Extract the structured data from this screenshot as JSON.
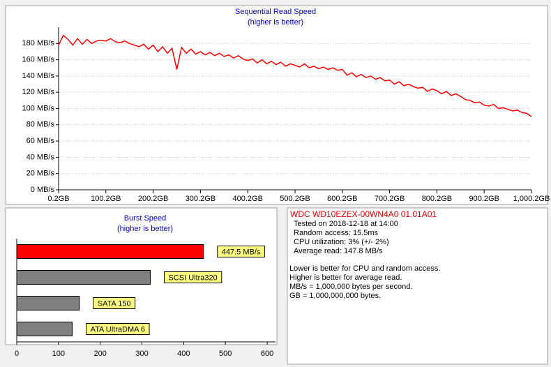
{
  "chart_data": [
    {
      "type": "line",
      "title": "Sequential Read Speed",
      "subtitle": "(higher is better)",
      "color": "#ff0000",
      "grid": true,
      "x": [
        0.2,
        10.2,
        20.2,
        30.2,
        40.2,
        50.2,
        60.2,
        70.2,
        80.2,
        90.2,
        100.2,
        110.2,
        120.2,
        130.2,
        140.2,
        150.2,
        160.2,
        170.2,
        180.2,
        190.2,
        200.2,
        210.2,
        220.2,
        230.2,
        240.2,
        250.2,
        260.2,
        270.2,
        280.2,
        290.2,
        300.2,
        310.2,
        320.2,
        330.2,
        340.2,
        350.2,
        360.2,
        370.2,
        380.2,
        390.2,
        400.2,
        410.2,
        420.2,
        430.2,
        440.2,
        450.2,
        460.2,
        470.2,
        480.2,
        490.2,
        500.2,
        510.2,
        520.2,
        530.2,
        540.2,
        550.2,
        560.2,
        570.2,
        580.2,
        590.2,
        600.2,
        610.2,
        620.2,
        630.2,
        640.2,
        650.2,
        660.2,
        670.2,
        680.2,
        690.2,
        700.2,
        710.2,
        720.2,
        730.2,
        740.2,
        750.2,
        760.2,
        770.2,
        780.2,
        790.2,
        800.2,
        810.2,
        820.2,
        830.2,
        840.2,
        850.2,
        860.2,
        870.2,
        880.2,
        890.2,
        900.2,
        910.2,
        920.2,
        930.2,
        940.2,
        950.2,
        960.2,
        970.2,
        980.2,
        990.2,
        1000.2
      ],
      "values": [
        178,
        190,
        185,
        178,
        186,
        179,
        185,
        180,
        183,
        184,
        183,
        186,
        182,
        181,
        183,
        180,
        178,
        176,
        179,
        173,
        178,
        170,
        176,
        168,
        174,
        148,
        175,
        168,
        173,
        167,
        170,
        166,
        169,
        165,
        168,
        164,
        166,
        162,
        165,
        161,
        159,
        161,
        156,
        160,
        155,
        158,
        154,
        157,
        152,
        155,
        153,
        151,
        155,
        150,
        152,
        149,
        151,
        148,
        150,
        147,
        148,
        141,
        144,
        139,
        142,
        138,
        140,
        136,
        138,
        134,
        135,
        130,
        133,
        128,
        130,
        127,
        125,
        126,
        121,
        124,
        122,
        118,
        121,
        116,
        118,
        115,
        111,
        110,
        107,
        108,
        104,
        103,
        105,
        100,
        101,
        99,
        97,
        98,
        95,
        94,
        90
      ],
      "xlim": [
        0.2,
        1000.2
      ],
      "xticks": [
        {
          "value": 0.2,
          "label": "0.2GB"
        },
        {
          "value": 100.2,
          "label": "100.2GB"
        },
        {
          "value": 200.2,
          "label": "200.2GB"
        },
        {
          "value": 300.2,
          "label": "300.2GB"
        },
        {
          "value": 400.2,
          "label": "400.2GB"
        },
        {
          "value": 500.2,
          "label": "500.2GB"
        },
        {
          "value": 600.2,
          "label": "600.2GB"
        },
        {
          "value": 700.2,
          "label": "700.2GB"
        },
        {
          "value": 800.2,
          "label": "800.2GB"
        },
        {
          "value": 900.2,
          "label": "900.2GB"
        },
        {
          "value": 1000.2,
          "label": "1,000.2GB"
        }
      ],
      "ylim": [
        0,
        200
      ],
      "yticks": [
        {
          "value": 0,
          "label": "0 MB/s"
        },
        {
          "value": 20,
          "label": "20 MB/s"
        },
        {
          "value": 40,
          "label": "40 MB/s"
        },
        {
          "value": 60,
          "label": "60 MB/s"
        },
        {
          "value": 80,
          "label": "80 MB/s"
        },
        {
          "value": 100,
          "label": "100 MB/s"
        },
        {
          "value": 120,
          "label": "120 MB/s"
        },
        {
          "value": 140,
          "label": "140 MB/s"
        },
        {
          "value": 160,
          "label": "160 MB/s"
        },
        {
          "value": 180,
          "label": "180 MB/s"
        }
      ]
    },
    {
      "type": "hbar",
      "title": "Burst Speed",
      "subtitle": "(higher is better)",
      "categories": [
        null,
        "SCSI Ultra320",
        "SATA 150",
        "ATA UltraDMA 6"
      ],
      "values": [
        447.5,
        320,
        150,
        133
      ],
      "value_labels": [
        "447.5 MB/s",
        null,
        null,
        null
      ],
      "colors": [
        "#ff0000",
        "#808080",
        "#808080",
        "#808080"
      ],
      "xlim": [
        0,
        620
      ],
      "xticks": [
        0,
        100,
        200,
        300,
        400,
        500,
        600
      ]
    }
  ],
  "info": {
    "title": "WDC WD10EZEX-00WN4A0 01.01A01",
    "lines": [
      "Tested on 2018-12-18 at 14:00",
      "Random access: 15.5ms",
      "CPU utilization: 3% (+/- 2%)",
      "Average read: 147.8 MB/s"
    ],
    "notes": [
      "Lower is better for CPU and random access.",
      "Higher is better for average read.",
      "MB/s = 1,000,000 bytes per second.",
      "GB = 1,000,000,000 bytes."
    ]
  }
}
